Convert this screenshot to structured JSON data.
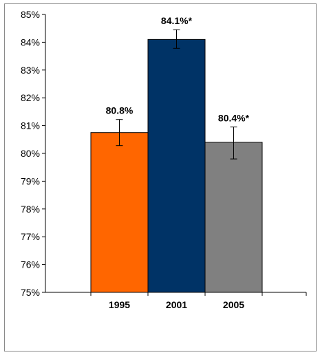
{
  "chart_data": {
    "type": "bar",
    "categories": [
      "1995",
      "2001",
      "2005"
    ],
    "values": [
      80.75,
      84.1,
      80.4
    ],
    "data_labels": [
      "80.8%",
      "84.1%*",
      "80.4%*"
    ],
    "error_bars": [
      [
        80.28,
        81.22
      ],
      [
        83.78,
        84.45
      ],
      [
        79.8,
        80.95
      ]
    ],
    "colors": [
      "#ff6600",
      "#003366",
      "#808080"
    ],
    "ylim": [
      75,
      85
    ],
    "yticks": [
      75,
      76,
      77,
      78,
      79,
      80,
      81,
      82,
      83,
      84,
      85
    ],
    "ytick_labels": [
      "75%",
      "76%",
      "77%",
      "78%",
      "79%",
      "80%",
      "81%",
      "82%",
      "83%",
      "84%",
      "85%"
    ],
    "title": "",
    "xlabel": "",
    "ylabel": "",
    "grid": false,
    "legend": "none"
  }
}
